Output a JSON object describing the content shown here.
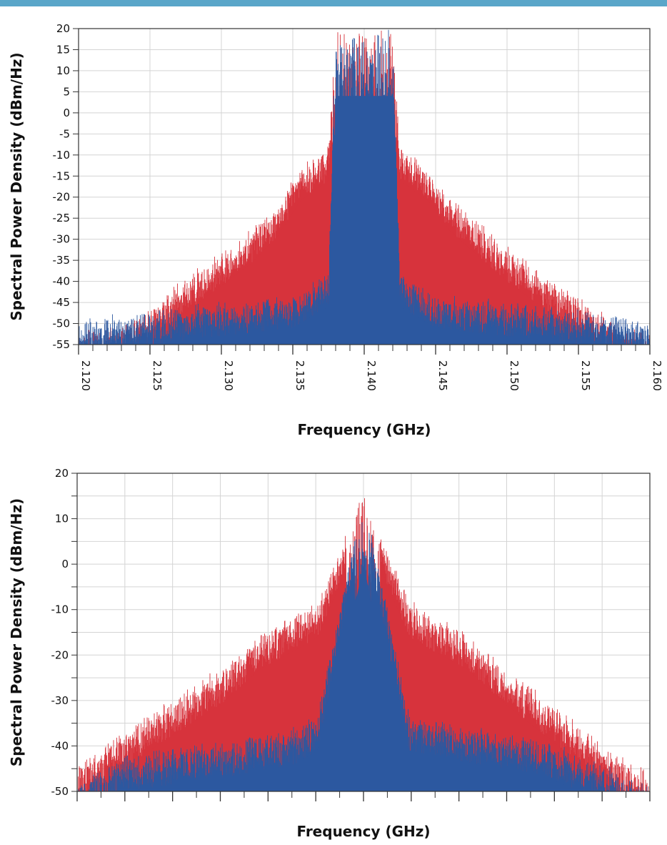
{
  "charts": [
    {
      "ylabel": "Spectral Power Density (dBm/Hz)",
      "xlabel": "Frequency (GHz)"
    },
    {
      "ylabel": "Spectral Power Density (dBm/Hz)",
      "xlabel": "Frequency (GHz)"
    }
  ],
  "chart_data": [
    {
      "type": "area",
      "title": "",
      "xlabel": "Frequency (GHz)",
      "ylabel": "Spectral Power Density (dBm/Hz)",
      "xlim": [
        2.12,
        2.16
      ],
      "ylim": [
        -55,
        20
      ],
      "x_ticks": [
        "2.120",
        "2.125",
        "2.130",
        "2.135",
        "2.140",
        "2.145",
        "2.150",
        "2.155",
        "2.160"
      ],
      "y_ticks": [
        "20",
        "15",
        "10",
        "5",
        "0",
        "-5",
        "-10",
        "-15",
        "-20",
        "-25",
        "-30",
        "-35",
        "-40",
        "-45",
        "-50",
        "-55"
      ],
      "grid": true,
      "legend": "none",
      "series": [
        {
          "color": "#d7333c",
          "x": [
            2.12,
            2.122,
            2.125,
            2.128,
            2.13,
            2.132,
            2.134,
            2.1355,
            2.1375,
            2.138,
            2.14,
            2.142,
            2.1425,
            2.1445,
            2.146,
            2.148,
            2.15,
            2.152,
            2.155,
            2.158,
            2.16
          ],
          "y": [
            -54,
            -53,
            -48,
            -40,
            -35,
            -30,
            -23,
            -15,
            -10,
            18,
            18,
            18,
            -10,
            -15,
            -22,
            -28,
            -34,
            -39,
            -46,
            -52,
            -54
          ]
        },
        {
          "color": "#2c58a0",
          "x": [
            2.12,
            2.125,
            2.13,
            2.135,
            2.1375,
            2.138,
            2.14,
            2.142,
            2.1425,
            2.145,
            2.15,
            2.155,
            2.16
          ],
          "y": [
            -51,
            -49,
            -47,
            -45,
            -40,
            18,
            18,
            18,
            -40,
            -45,
            -47,
            -49,
            -51
          ]
        }
      ]
    },
    {
      "type": "area",
      "title": "",
      "xlabel": "Frequency (GHz)",
      "ylabel": "Spectral Power Density (dBm/Hz)",
      "ylim": [
        -50,
        20
      ],
      "y_ticks": [
        "20",
        "10",
        "0",
        "-10",
        "-20",
        "-30",
        "-40",
        "-50"
      ],
      "x_tick_count": 13,
      "grid": true,
      "legend": "none",
      "series": [
        {
          "color": "#d7333c",
          "x": [
            0,
            0.07,
            0.15,
            0.25,
            0.32,
            0.38,
            0.42,
            0.5,
            0.58,
            0.62,
            0.68,
            0.75,
            0.85,
            0.93,
            1.0
          ],
          "y": [
            -46,
            -40,
            -33,
            -25,
            -17,
            -13,
            -10,
            14,
            -10,
            -13,
            -17,
            -25,
            -35,
            -43,
            -48
          ]
        },
        {
          "color": "#2c58a0",
          "x": [
            0,
            0.08,
            0.2,
            0.3,
            0.38,
            0.42,
            0.5,
            0.58,
            0.62,
            0.7,
            0.8,
            0.9,
            0.98,
            1.0
          ],
          "y": [
            -50,
            -44,
            -42,
            -40,
            -38,
            -35,
            14,
            -35,
            -36,
            -38,
            -40,
            -45,
            -50,
            -50
          ]
        }
      ]
    }
  ]
}
